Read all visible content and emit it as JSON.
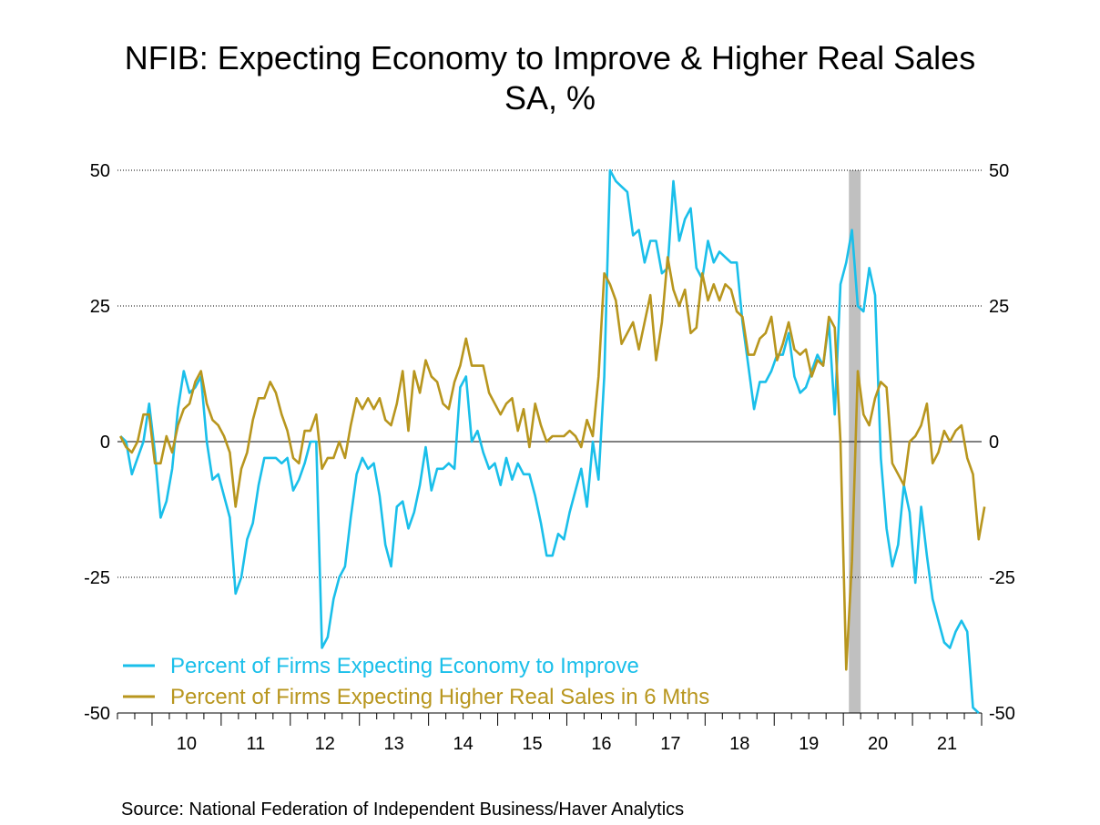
{
  "chart_data": {
    "type": "line",
    "title": "NFIB: Expecting Economy to Improve & Higher Real Sales",
    "subtitle": "SA, %",
    "source": "Source:  National Federation of Independent Business/Haver Analytics",
    "ylim": [
      -50,
      50
    ],
    "yticks": [
      50,
      25,
      0,
      -25,
      -50
    ],
    "xlim": [
      2009.5,
      2022.0
    ],
    "xtick_labels": [
      "10",
      "11",
      "12",
      "13",
      "14",
      "15",
      "16",
      "17",
      "18",
      "19",
      "20",
      "21"
    ],
    "grid": true,
    "legend_position": "bottom-left",
    "recession_band": [
      2020.08,
      2020.25
    ],
    "series": [
      {
        "name": "Percent of Firms Expecting Economy to Improve",
        "color": "#1ABFEA",
        "values": [
          1,
          0,
          -6,
          -3,
          0,
          7,
          -2,
          -14,
          -11,
          -5,
          6,
          13,
          9,
          10,
          12,
          0,
          -7,
          -6,
          -10,
          -14,
          -28,
          -25,
          -18,
          -15,
          -8,
          -3,
          -3,
          -3,
          -4,
          -3,
          -9,
          -7,
          -4,
          0,
          0,
          -38,
          -36,
          -29,
          -25,
          -23,
          -14,
          -6,
          -3,
          -5,
          -4,
          -10,
          -19,
          -23,
          -12,
          -11,
          -16,
          -13,
          -8,
          -1,
          -9,
          -5,
          -5,
          -4,
          -5,
          10,
          12,
          0,
          2,
          -2,
          -5,
          -4,
          -8,
          -3,
          -7,
          -4,
          -6,
          -6,
          -10,
          -15,
          -21,
          -21,
          -17,
          -18,
          -13,
          -9,
          -5,
          -12,
          0,
          -7,
          12,
          50,
          48,
          47,
          46,
          38,
          39,
          33,
          37,
          37,
          31,
          32,
          48,
          37,
          41,
          43,
          32,
          30,
          37,
          33,
          35,
          34,
          33,
          33,
          22,
          14,
          6,
          11,
          11,
          13,
          16,
          16,
          20,
          12,
          9,
          10,
          13,
          16,
          14,
          22,
          5,
          29,
          33,
          39,
          25,
          24,
          32,
          27,
          -3,
          -16,
          -23,
          -19,
          -8,
          -13,
          -26,
          -12,
          -21,
          -29,
          -33,
          -37,
          -38,
          -35,
          -33,
          -35,
          -49,
          -50
        ]
      },
      {
        "name": "Percent of Firms Expecting Higher Real Sales in 6 Mths",
        "color": "#B8961E",
        "values": [
          1,
          -1,
          -2,
          0,
          5,
          5,
          -4,
          -4,
          1,
          -2,
          3,
          6,
          7,
          11,
          13,
          7,
          4,
          3,
          1,
          -2,
          -12,
          -5,
          -2,
          4,
          8,
          8,
          11,
          9,
          5,
          2,
          -3,
          -4,
          2,
          2,
          5,
          -5,
          -3,
          -3,
          0,
          -3,
          3,
          8,
          6,
          8,
          6,
          8,
          4,
          3,
          7,
          13,
          2,
          13,
          9,
          15,
          12,
          11,
          7,
          6,
          11,
          14,
          19,
          14,
          14,
          14,
          9,
          7,
          5,
          7,
          8,
          2,
          6,
          -1,
          7,
          3,
          0,
          1,
          1,
          1,
          2,
          1,
          -1,
          4,
          1,
          12,
          31,
          29,
          26,
          18,
          20,
          22,
          17,
          22,
          27,
          15,
          22,
          34,
          28,
          25,
          28,
          20,
          21,
          31,
          26,
          29,
          26,
          29,
          28,
          24,
          23,
          16,
          16,
          19,
          20,
          23,
          15,
          18,
          22,
          17,
          16,
          17,
          12,
          15,
          14,
          23,
          21,
          0,
          -42,
          -22,
          13,
          5,
          3,
          8,
          11,
          10,
          -4,
          -6,
          -8,
          0,
          1,
          3,
          7,
          -4,
          -2,
          2,
          0,
          2,
          3,
          -3,
          -6,
          -18,
          -12
        ]
      }
    ]
  }
}
